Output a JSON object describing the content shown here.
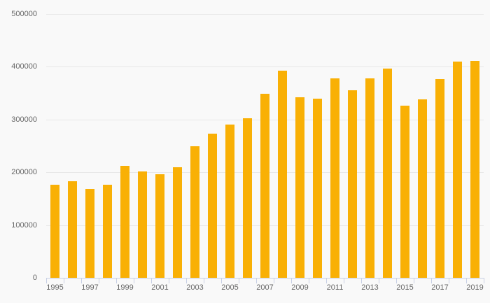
{
  "chart_style": {
    "background_color": "#f9f9f9",
    "bar_color": "#f9b005",
    "gridline_color": "#e8e8e8",
    "axis_color": "#c9d0e4",
    "label_color": "#666666"
  },
  "chart_data": {
    "type": "bar",
    "title": "",
    "xlabel": "",
    "ylabel": "",
    "categories": [
      "1995",
      "1996",
      "1997",
      "1998",
      "1999",
      "2000",
      "2001",
      "2002",
      "2003",
      "2004",
      "2005",
      "2006",
      "2007",
      "2008",
      "2009",
      "2010",
      "2011",
      "2012",
      "2013",
      "2014",
      "2015",
      "2016",
      "2017",
      "2018",
      "2019"
    ],
    "values": [
      177000,
      183000,
      168000,
      176000,
      212000,
      202000,
      197000,
      210000,
      250000,
      273000,
      290000,
      302000,
      349000,
      393000,
      342000,
      340000,
      378000,
      355000,
      378000,
      396000,
      326000,
      338000,
      377000,
      410000,
      411000
    ],
    "ylim": [
      0,
      500000
    ],
    "ytick_step": 100000,
    "ytick_labels": [
      "0",
      "100000",
      "200000",
      "300000",
      "400000",
      "500000"
    ],
    "xtick_labels": [
      "1995",
      "1997",
      "1999",
      "2001",
      "2003",
      "2005",
      "2007",
      "2009",
      "2011",
      "2013",
      "2015",
      "2017",
      "2019"
    ],
    "grid": "horizontal",
    "legend": "none"
  }
}
